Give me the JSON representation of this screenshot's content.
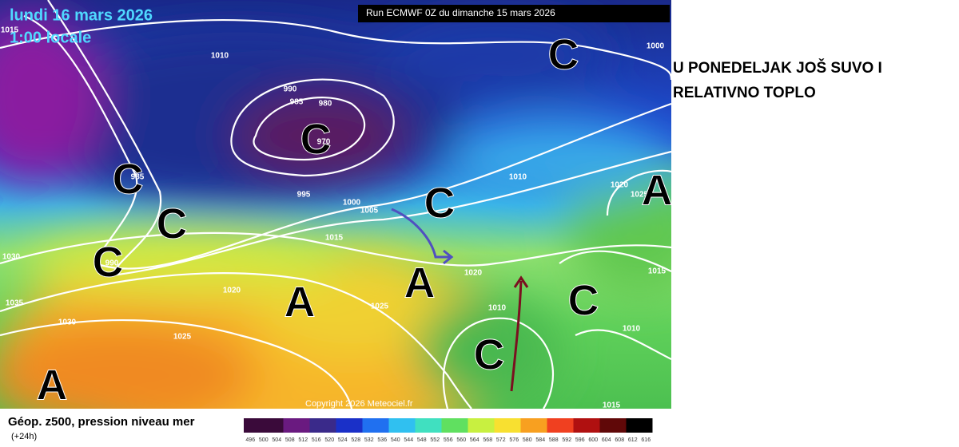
{
  "header": {
    "date": "lundi 16 mars 2026",
    "time": "1:00 locale",
    "run": "Run ECMWF 0Z du dimanche 15 mars 2026"
  },
  "caption": {
    "lines": [
      "U PONEDELJAK JOŠ SUVO I",
      "RELATIVNO TOPLO"
    ]
  },
  "map": {
    "pressure_labels": [
      "1015",
      "1010",
      "1000",
      "990",
      "985",
      "980",
      "970",
      "985",
      "995",
      "1000",
      "1005",
      "1010",
      "1020",
      "1025",
      "1015",
      "1030",
      "1020",
      "1020",
      "1015",
      "1035",
      "1030",
      "1025",
      "1010",
      "1010",
      "1025",
      "1015",
      "990"
    ],
    "systems": [
      "C",
      "C",
      "C",
      "C",
      "C",
      "C",
      "A",
      "A",
      "A",
      "C",
      "C",
      "A"
    ],
    "copyright": "Copyright 2026 Meteociel.fr"
  },
  "legend": {
    "title": "Géop. z500, pression niveau mer",
    "step": "(+24h)",
    "scale": [
      "496",
      "500",
      "504",
      "508",
      "512",
      "516",
      "520",
      "524",
      "528",
      "532",
      "536",
      "540",
      "544",
      "548",
      "552",
      "556",
      "560",
      "564",
      "568",
      "572",
      "576",
      "580",
      "584",
      "588",
      "592",
      "596",
      "600",
      "604",
      "608",
      "612",
      "616"
    ]
  }
}
